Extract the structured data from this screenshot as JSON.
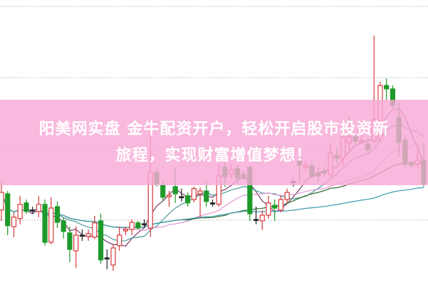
{
  "banner": {
    "line1": "阳美网实盘 金牛配资开户，轻松开启股市投资新",
    "line2": "旅程，实现财富增值梦想！",
    "color": "#f8a8d6"
  },
  "chart_data": {
    "type": "candlestick",
    "grid": true,
    "legend": "none",
    "colors": {
      "up": "#d8383a",
      "down": "#1e9a2a",
      "doji": "#222222",
      "grid": "#b0b0b0"
    },
    "moving_averages": [
      {
        "period": 5,
        "color": "#7a3a6a"
      },
      {
        "period": 10,
        "color": "#4a9a98"
      },
      {
        "period": 20,
        "color": "#e296d6"
      },
      {
        "period": 30,
        "color": "#2e6a2e"
      },
      {
        "period": 60,
        "color": "#3a9aae"
      }
    ],
    "ylim": [
      0,
      100
    ],
    "ohlc": [
      [
        26.3,
        36.3,
        22.5,
        32.5
      ],
      [
        32,
        33,
        17.5,
        20.8
      ],
      [
        20.5,
        25.5,
        16.8,
        23.8
      ],
      [
        23.3,
        31.3,
        21.3,
        28.3
      ],
      [
        28.8,
        30,
        25,
        25.8
      ],
      [
        26.3,
        27.5,
        25,
        26.3
      ],
      [
        25.8,
        31.3,
        23.8,
        28.3
      ],
      [
        28.3,
        30,
        13.8,
        15
      ],
      [
        15,
        30.8,
        14.3,
        27
      ],
      [
        27.5,
        29.3,
        20,
        22
      ],
      [
        22.5,
        23.8,
        16.3,
        18.8
      ],
      [
        18.3,
        20.5,
        8,
        12.5
      ],
      [
        12,
        20.5,
        6,
        17.5
      ],
      [
        17.5,
        19.5,
        15.5,
        17.5
      ],
      [
        17,
        19.5,
        15.5,
        18
      ],
      [
        16.8,
        24.3,
        16,
        21.8
      ],
      [
        22.5,
        25,
        7.5,
        8.8
      ],
      [
        9.5,
        12.5,
        5.5,
        9.5
      ],
      [
        7,
        14.3,
        5,
        13
      ],
      [
        13.8,
        20.5,
        12,
        17.5
      ],
      [
        19,
        20.5,
        17.5,
        19.5
      ],
      [
        19.5,
        23,
        17.5,
        22
      ],
      [
        21.8,
        22.5,
        19.5,
        20
      ],
      [
        21.5,
        23,
        20,
        21.5
      ],
      [
        20,
        56.3,
        16.8,
        39.5
      ],
      [
        39.5,
        40.8,
        34.5,
        35.5
      ],
      [
        35,
        36.3,
        29.3,
        30.8
      ],
      [
        31,
        33,
        27.5,
        31.5
      ],
      [
        34.5,
        41.3,
        28.8,
        32
      ],
      [
        31,
        33.8,
        29.3,
        31
      ],
      [
        31.3,
        32.5,
        27.5,
        28.8
      ],
      [
        30,
        34.5,
        29,
        33.8
      ],
      [
        32,
        34.3,
        23.8,
        33
      ],
      [
        33,
        36.3,
        27.5,
        29.3
      ],
      [
        28.8,
        30,
        27.5,
        28.8
      ],
      [
        28.3,
        42.5,
        27.5,
        38.3
      ],
      [
        41.3,
        43,
        34.5,
        38
      ],
      [
        38.8,
        42.5,
        37.5,
        40.5
      ],
      [
        40.8,
        42,
        35.5,
        37.5
      ],
      [
        38.8,
        40,
        37,
        37.5
      ],
      [
        41.3,
        42,
        22.5,
        25
      ],
      [
        23,
        27.5,
        21.3,
        23
      ],
      [
        22.5,
        26.3,
        19.3,
        24.5
      ],
      [
        24.5,
        31.3,
        23.3,
        28.8
      ],
      [
        28,
        30,
        22.5,
        27
      ],
      [
        26.3,
        31.3,
        25.5,
        30
      ],
      [
        30,
        33.8,
        28.8,
        32.5
      ],
      [
        36.3,
        37.5,
        34.5,
        36.3
      ],
      [
        43.5,
        45,
        35.5,
        42
      ],
      [
        41.3,
        43.8,
        40,
        42
      ],
      [
        41.8,
        43,
        37.5,
        38
      ],
      [
        39.3,
        41.3,
        36.3,
        38.3
      ],
      [
        40,
        41.3,
        38,
        39.3
      ],
      [
        38.8,
        50,
        37.5,
        46.3
      ],
      [
        45.5,
        48,
        42.5,
        44.5
      ],
      [
        44.5,
        55.5,
        42,
        52
      ],
      [
        50,
        58.8,
        47.5,
        52
      ],
      [
        52,
        53,
        49.5,
        50.5
      ],
      [
        50.3,
        52.5,
        49.5,
        50.8
      ],
      [
        49.5,
        51.3,
        46.3,
        47.5
      ],
      [
        50.5,
        87.5,
        50,
        58
      ],
      [
        51.3,
        71.3,
        50,
        70
      ],
      [
        70,
        72.5,
        65,
        68.8
      ],
      [
        68.8,
        70,
        62,
        63
      ],
      [
        58.8,
        64.3,
        45,
        50
      ],
      [
        50.8,
        52.5,
        41.3,
        42.5
      ],
      [
        43,
        43.8,
        41.3,
        42
      ],
      [
        42.5,
        47.5,
        41.3,
        43.8
      ],
      [
        43.8,
        50,
        34.5,
        35.5
      ]
    ]
  }
}
